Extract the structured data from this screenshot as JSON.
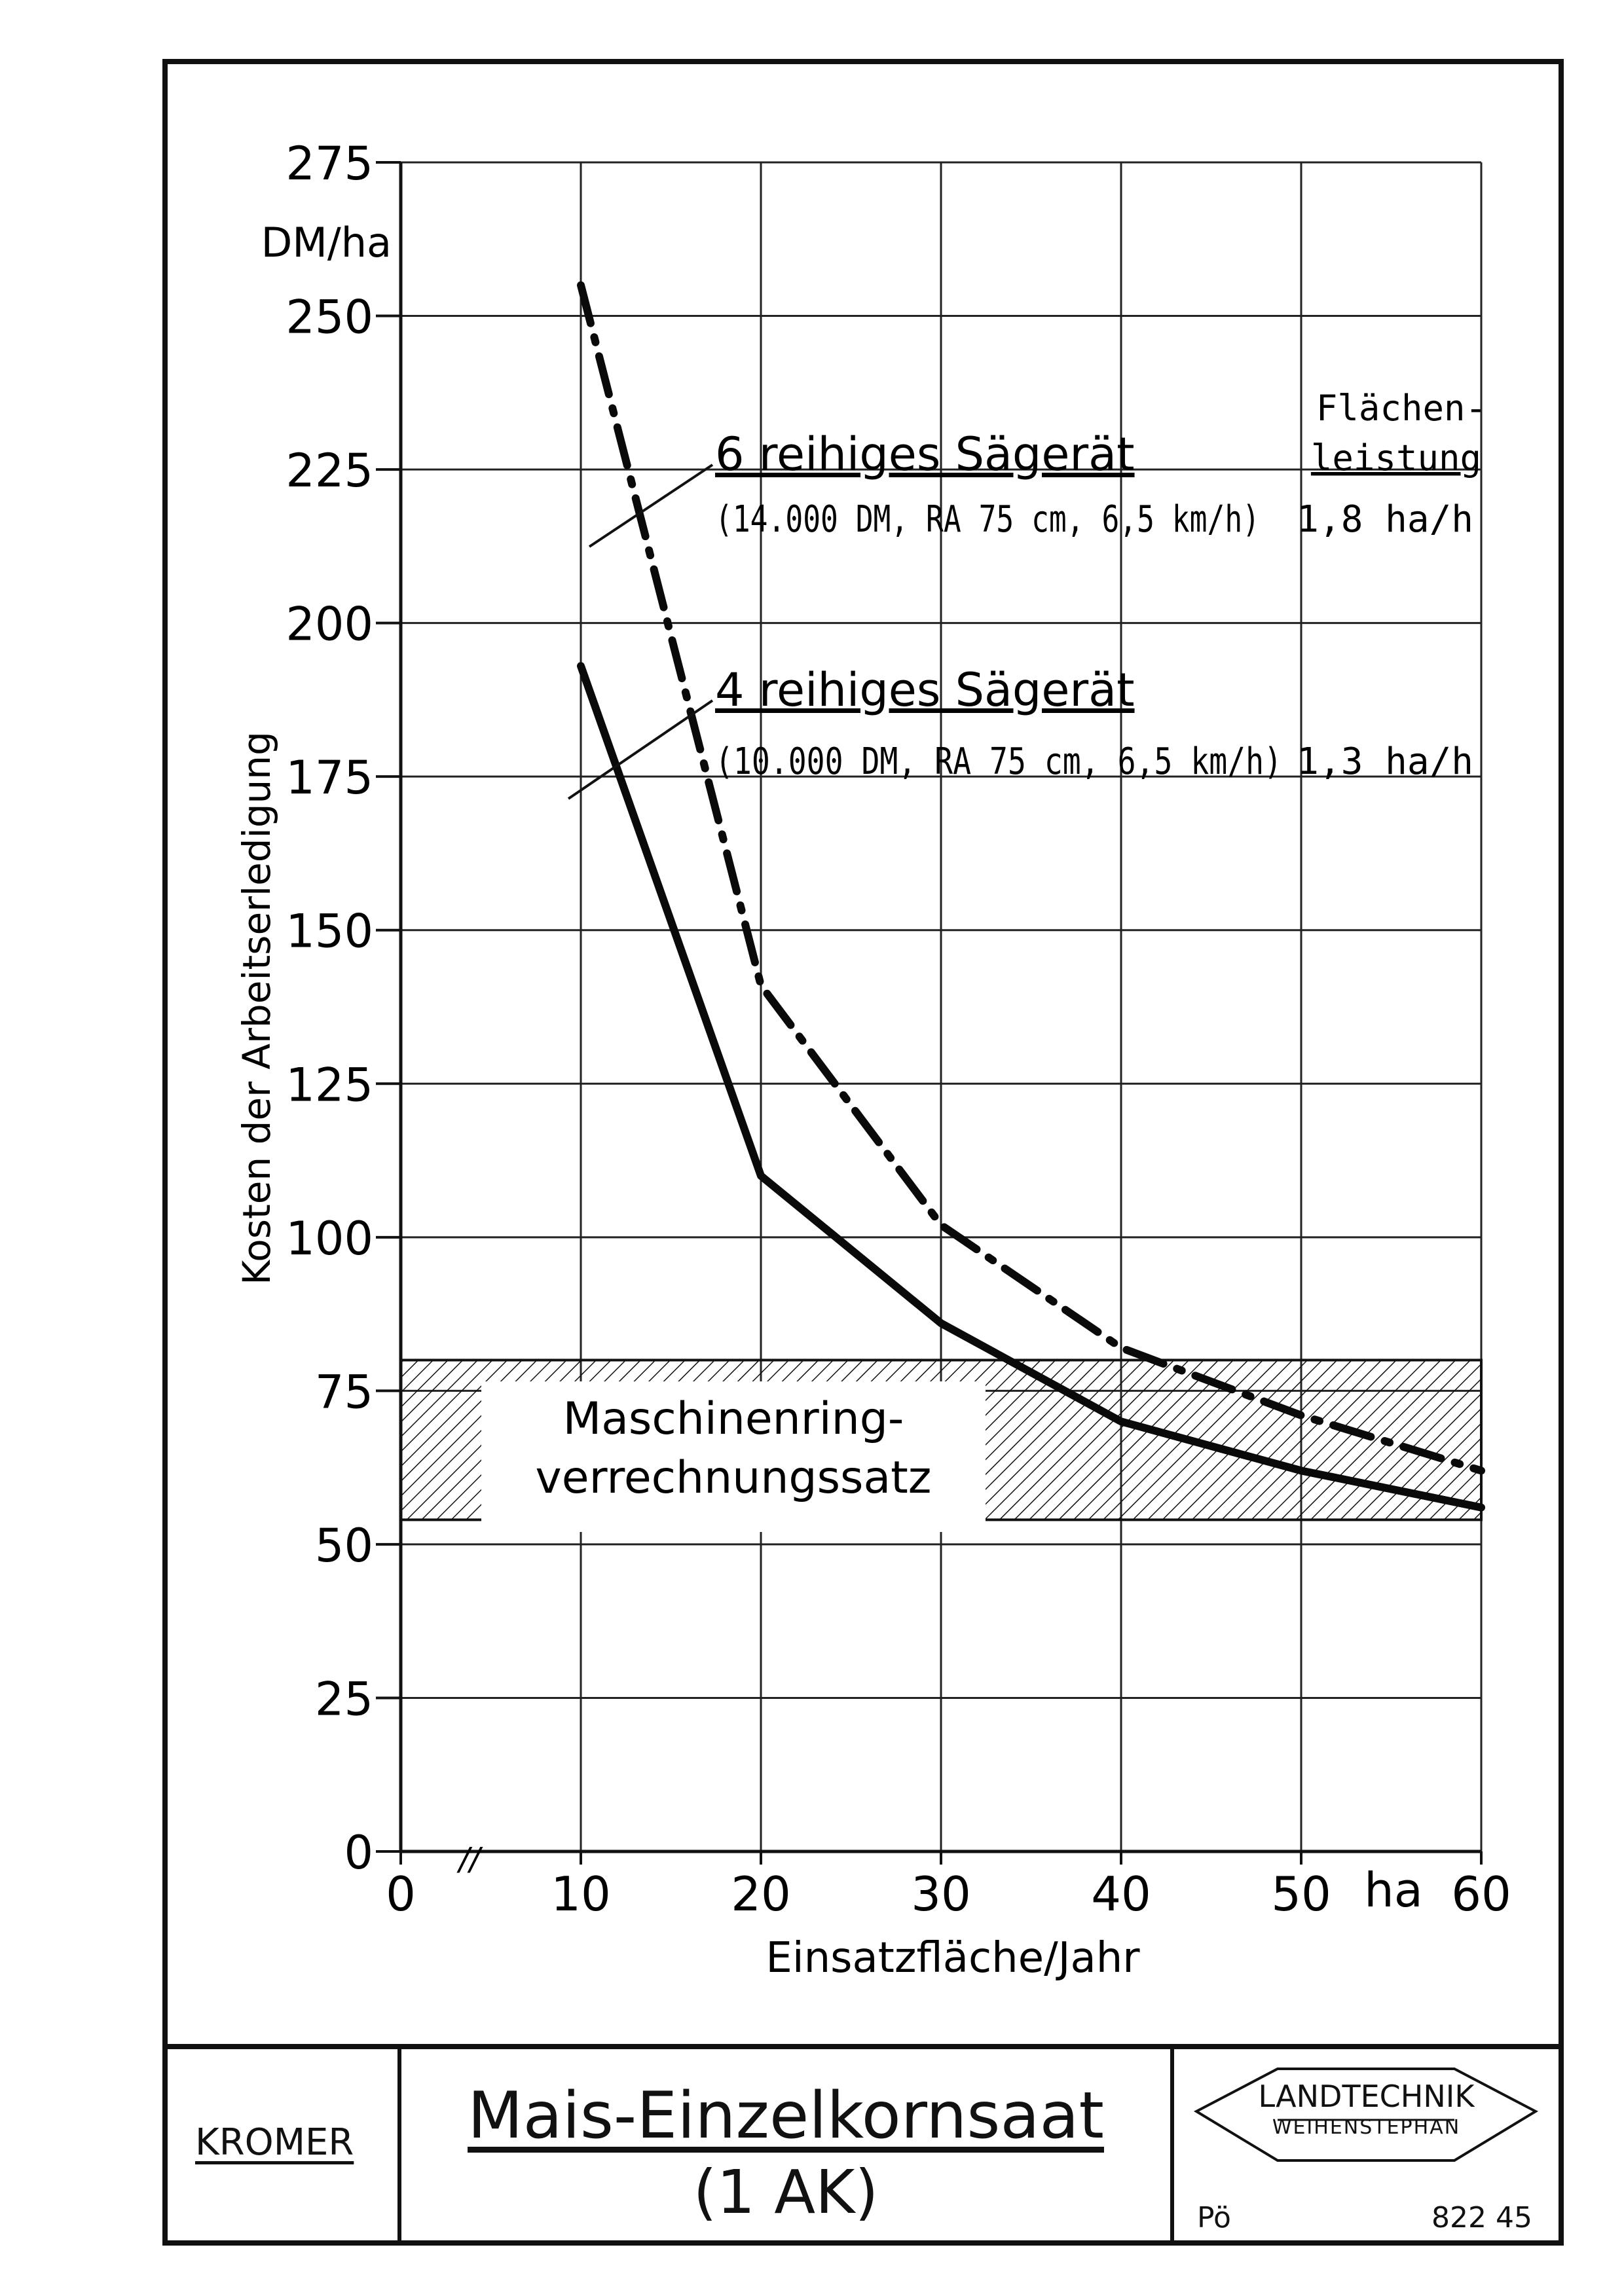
{
  "chart_data": {
    "type": "line",
    "ylabel": "Kosten der Arbeitserledigung",
    "y_unit": "DM/ha",
    "xlabel": "Einsatzfläche/Jahr",
    "x_unit": "ha",
    "xlim": [
      0,
      60
    ],
    "ylim": [
      0,
      275
    ],
    "x_ticks": [
      "0",
      "10",
      "20",
      "30",
      "40",
      "50",
      "60"
    ],
    "y_ticks": [
      "0",
      "25",
      "50",
      "75",
      "100",
      "125",
      "150",
      "175",
      "200",
      "225",
      "250",
      "275"
    ],
    "grid": true,
    "x_axis_break": "//",
    "series": [
      {
        "name": "6 reihiges Sägerät",
        "detail": "(14.000 DM, RA 75 cm, 6,5 km/h)",
        "flaechenleistung": "1,8 ha/h",
        "style": "dash-dot",
        "x": [
          10,
          20,
          30,
          40,
          50,
          60
        ],
        "y": [
          255,
          141,
          102,
          82,
          71,
          62
        ]
      },
      {
        "name": "4 reihiges Sägerät",
        "detail": "(10.000 DM, RA 75 cm, 6,5 km/h)",
        "flaechenleistung": "1,3 ha/h",
        "style": "solid",
        "x": [
          10,
          20,
          30,
          40,
          50,
          60
        ],
        "y": [
          193,
          110,
          86,
          70,
          62,
          56
        ]
      }
    ],
    "band": {
      "label_line1": "Maschinenring-",
      "label_line2": "verrechnungssatz",
      "y_from": 54,
      "y_to": 80
    },
    "flaechenleistung_header_line1": "Flächen-",
    "flaechenleistung_header_line2": "leistung"
  },
  "title_block": {
    "author": "KROMER",
    "title": "Mais-Einzelkornsaat",
    "subtitle": "(1 AK)",
    "logo_line1": "LANDTECHNIK",
    "logo_line2": "WEIHENSTEPHAN",
    "code_left": "Pö",
    "code_right": "822 45"
  }
}
